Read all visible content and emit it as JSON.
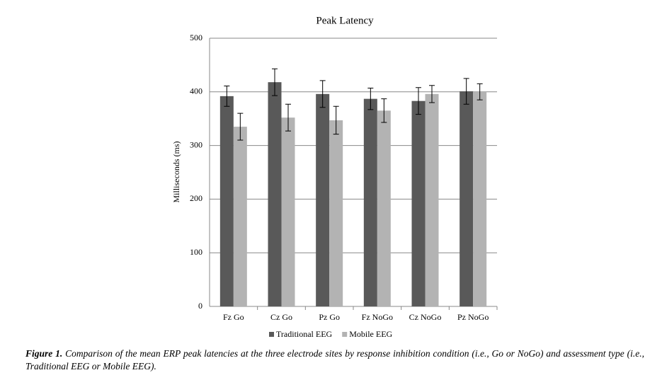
{
  "chart_data": {
    "type": "bar",
    "title": "Peak Latency",
    "y_label": "Milliseconds (ms)",
    "categories": [
      "Fz Go",
      "Cz Go",
      "Pz Go",
      "Fz NoGo",
      "Cz NoGo",
      "Pz NoGo"
    ],
    "series": [
      {
        "name": "Traditional EEG",
        "color": "#595959",
        "values": [
          392,
          418,
          396,
          387,
          383,
          401
        ],
        "errors": [
          19,
          25,
          25,
          20,
          25,
          24
        ]
      },
      {
        "name": "Mobile EEG",
        "color": "#b3b3b3",
        "values": [
          335,
          352,
          347,
          365,
          396,
          400
        ],
        "errors": [
          25,
          25,
          26,
          22,
          16,
          15
        ]
      }
    ],
    "ylim": [
      0,
      500
    ],
    "yticks": [
      0,
      100,
      200,
      300,
      400,
      500
    ],
    "grid": true,
    "legend": "bottom",
    "caption_label": "Figure 1.",
    "caption": "Comparison of the mean ERP peak latencies at the three electrode sites by response inhibition condition (i.e., Go or NoGo) and assessment type (i.e., Traditional EEG or Mobile EEG)."
  }
}
